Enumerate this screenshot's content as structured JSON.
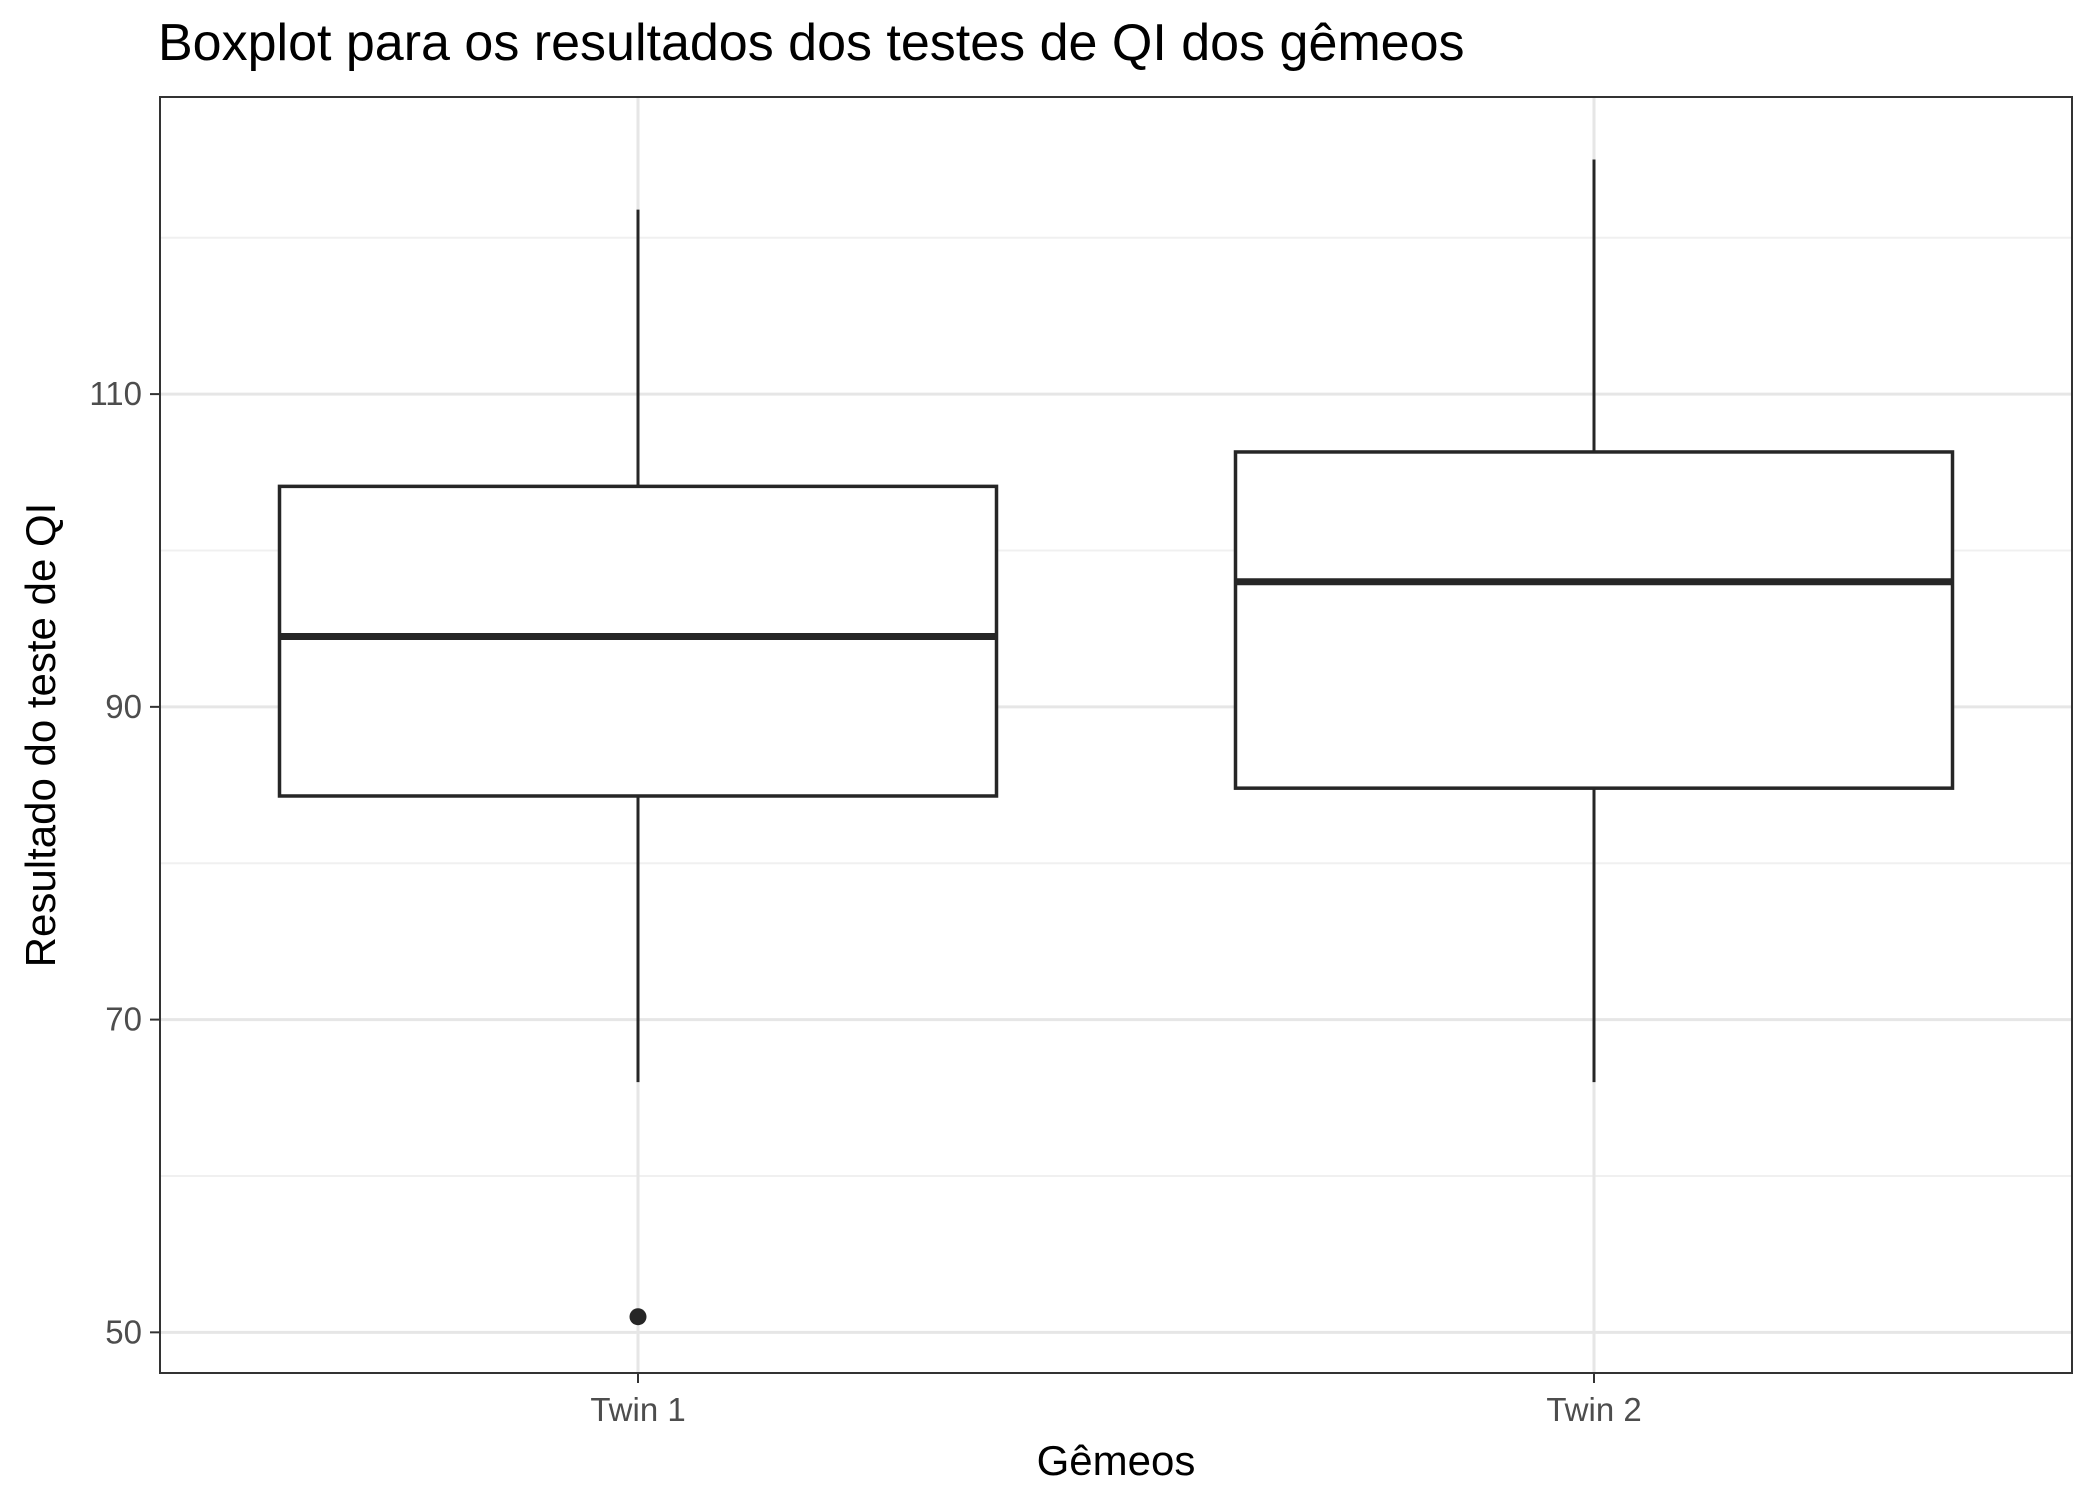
{
  "chart_data": {
    "type": "boxplot",
    "title": "Boxplot para os resultados dos testes de QI dos gêmeos",
    "xlabel": "Gêmeos",
    "ylabel": "Resultado do teste de QI",
    "ylim": [
      47.4,
      129.0
    ],
    "yticks": [
      50,
      70,
      90,
      110
    ],
    "ytick_labels": [
      "50",
      "70",
      "90",
      "110"
    ],
    "minor_grid_y": [
      60,
      80,
      100,
      120
    ],
    "grid": true,
    "legend": "none",
    "categories": [
      "Twin 1",
      "Twin 2"
    ],
    "boxes": [
      {
        "category": "Twin 1",
        "whisker_low": 66,
        "q1": 84.3,
        "median": 94.5,
        "q3": 104.1,
        "whisker_high": 121.8,
        "outliers": [
          51
        ]
      },
      {
        "category": "Twin 2",
        "whisker_low": 66,
        "q1": 84.8,
        "median": 98,
        "q3": 106.3,
        "whisker_high": 125,
        "outliers": []
      }
    ],
    "colors": {
      "box_line": "#262626",
      "panel_border": "#333333",
      "grid_major": "#e6e6e6",
      "grid_minor": "#f0f0f0",
      "outlier_fill": "#262626"
    }
  }
}
